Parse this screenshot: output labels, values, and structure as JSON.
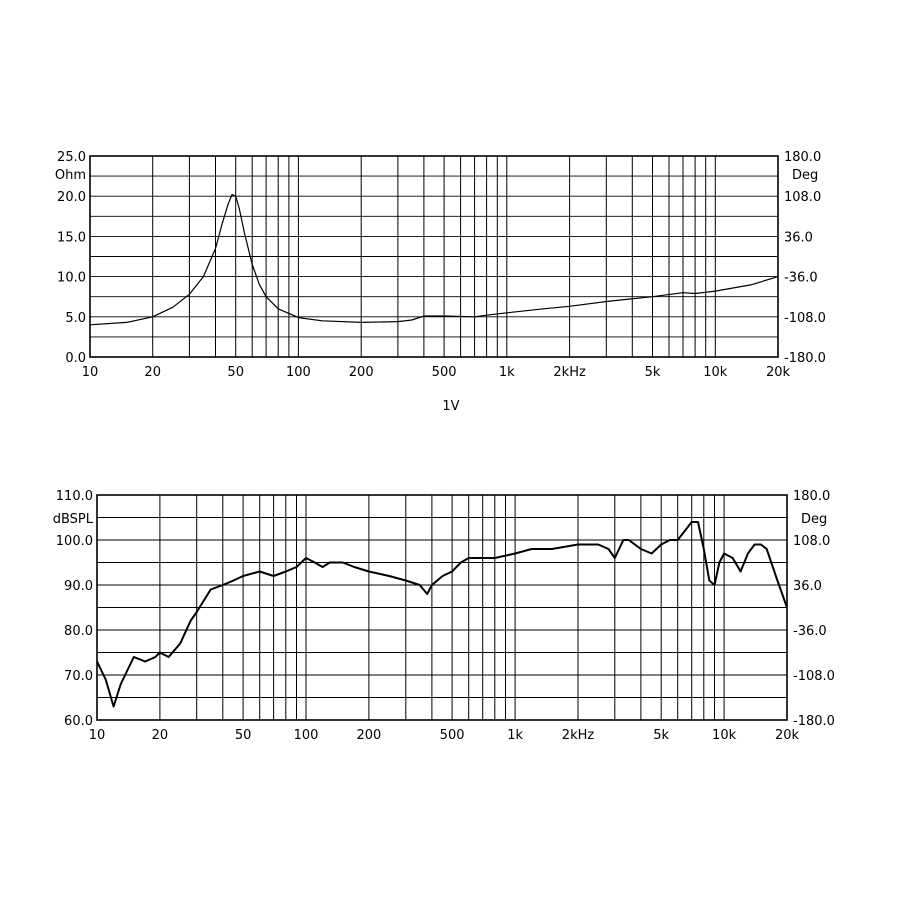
{
  "chart_data": [
    {
      "type": "line",
      "title": "",
      "xscale": "log",
      "xlim": [
        10,
        20000
      ],
      "ylim": [
        0,
        25
      ],
      "y2lim": [
        -180,
        180
      ],
      "grid": true,
      "ylabel": "Ohm",
      "y2label": "Deg",
      "caption": "1V",
      "y_ticks": [
        "0.0",
        "5.0",
        "10.0",
        "15.0",
        "20.0",
        "25.0"
      ],
      "y2_ticks": [
        "-180.0",
        "-108.0",
        "-36.0",
        "36.0",
        "108.0",
        "180.0"
      ],
      "x_ticks": [
        {
          "v": 10,
          "label": "10"
        },
        {
          "v": 20,
          "label": "20"
        },
        {
          "v": 50,
          "label": "50"
        },
        {
          "v": 100,
          "label": "100"
        },
        {
          "v": 200,
          "label": "200"
        },
        {
          "v": 500,
          "label": "500"
        },
        {
          "v": 1000,
          "label": "1k"
        },
        {
          "v": 2000,
          "label": "2kHz"
        },
        {
          "v": 5000,
          "label": "5k"
        },
        {
          "v": 10000,
          "label": "10k"
        },
        {
          "v": 20000,
          "label": "20k"
        }
      ],
      "series": [
        {
          "x": [
            10,
            15,
            20,
            25,
            30,
            35,
            40,
            43,
            46,
            48,
            50,
            52,
            55,
            60,
            65,
            70,
            80,
            100,
            130,
            200,
            300,
            350,
            400,
            500,
            700,
            800,
            1000,
            1500,
            2000,
            3000,
            5000,
            7000,
            8000,
            10000,
            15000,
            20000
          ],
          "values": [
            4.0,
            4.3,
            5.0,
            6.2,
            7.8,
            10.0,
            13.5,
            16.5,
            19.0,
            20.2,
            20.0,
            18.5,
            15.5,
            11.5,
            9.0,
            7.5,
            6.0,
            4.9,
            4.5,
            4.3,
            4.4,
            4.6,
            5.1,
            5.1,
            5.0,
            5.2,
            5.5,
            6.0,
            6.3,
            6.9,
            7.5,
            8.0,
            7.9,
            8.2,
            9.0,
            10.0
          ]
        }
      ]
    },
    {
      "type": "line",
      "title": "",
      "xscale": "log",
      "xlim": [
        10,
        20000
      ],
      "ylim": [
        60,
        110
      ],
      "y2lim": [
        -180,
        180
      ],
      "grid": true,
      "ylabel": "dBSPL",
      "y2label": "Deg",
      "y_ticks": [
        "60.0",
        "70.0",
        "80.0",
        "90.0",
        "100.0",
        "110.0"
      ],
      "y2_ticks": [
        "-180.0",
        "-108.0",
        "-36.0",
        "36.0",
        "108.0",
        "180.0"
      ],
      "x_ticks": [
        {
          "v": 10,
          "label": "10"
        },
        {
          "v": 20,
          "label": "20"
        },
        {
          "v": 50,
          "label": "50"
        },
        {
          "v": 100,
          "label": "100"
        },
        {
          "v": 200,
          "label": "200"
        },
        {
          "v": 500,
          "label": "500"
        },
        {
          "v": 1000,
          "label": "1k"
        },
        {
          "v": 2000,
          "label": "2kHz"
        },
        {
          "v": 5000,
          "label": "5k"
        },
        {
          "v": 10000,
          "label": "10k"
        },
        {
          "v": 20000,
          "label": "20k"
        }
      ],
      "series": [
        {
          "x": [
            10,
            11,
            12,
            13,
            15,
            17,
            19,
            20,
            22,
            25,
            28,
            30,
            35,
            40,
            45,
            50,
            60,
            70,
            80,
            90,
            100,
            110,
            120,
            130,
            150,
            170,
            200,
            250,
            300,
            350,
            380,
            400,
            450,
            500,
            550,
            600,
            700,
            800,
            1000,
            1200,
            1500,
            2000,
            2500,
            2800,
            3000,
            3300,
            3500,
            4000,
            4500,
            5000,
            5500,
            6000,
            7000,
            7500,
            8000,
            8500,
            9000,
            9500,
            10000,
            11000,
            12000,
            13000,
            14000,
            15000,
            16000,
            18000,
            20000
          ],
          "values": [
            73,
            69,
            63,
            68,
            74,
            73,
            74,
            75,
            74,
            77,
            82,
            84,
            89,
            90,
            91,
            92,
            93,
            92,
            93,
            94,
            96,
            95,
            94,
            95,
            95,
            94,
            93,
            92,
            91,
            90,
            88,
            90,
            92,
            93,
            95,
            96,
            96,
            96,
            97,
            98,
            98,
            99,
            99,
            98,
            96,
            100,
            100,
            98,
            97,
            99,
            100,
            100,
            104,
            104,
            98,
            91,
            90,
            95,
            97,
            96,
            93,
            97,
            99,
            99,
            98,
            91,
            85
          ]
        }
      ]
    }
  ]
}
